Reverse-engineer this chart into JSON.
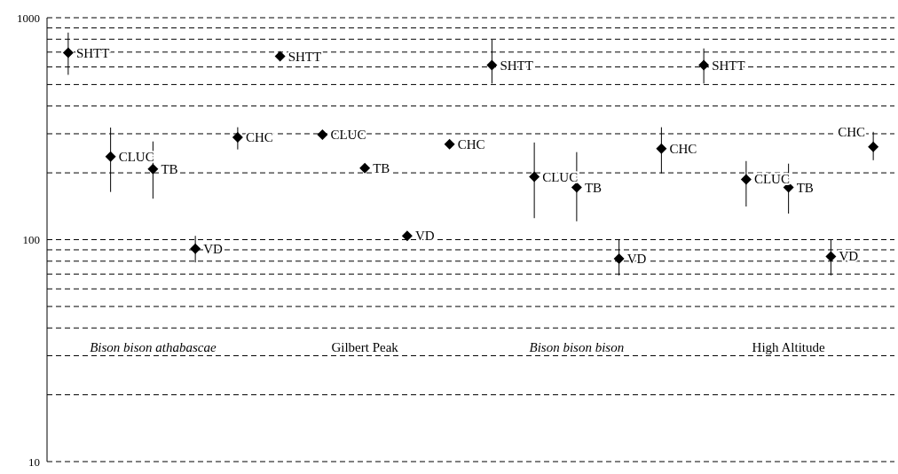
{
  "chart_data": {
    "type": "scatter",
    "categories": [
      null,
      null,
      null,
      null,
      null,
      null,
      null,
      null,
      null,
      null,
      null,
      null,
      null,
      null,
      null,
      null,
      null,
      null,
      null,
      null
    ],
    "series": [
      {
        "color": "#000000",
        "values": [
          695,
          237,
          208,
          91,
          289,
          670,
          297,
          210,
          104,
          269,
          611,
          192,
          172,
          82,
          257,
          611,
          187,
          172,
          84,
          262
        ],
        "errors": [
          [
            553,
            857
          ],
          [
            164,
            320
          ],
          [
            153,
            277
          ],
          [
            79,
            104
          ],
          [
            255,
            321
          ],
          null,
          null,
          null,
          null,
          null,
          [
            505,
            796
          ],
          [
            125,
            274
          ],
          [
            121,
            248
          ],
          [
            69,
            100
          ],
          [
            199,
            321
          ],
          [
            505,
            727
          ],
          [
            141,
            226
          ],
          [
            131,
            220
          ],
          [
            69,
            100
          ],
          [
            228,
            306
          ]
        ],
        "value_labels": [
          "SHTT",
          "CLUC",
          "TB",
          "VD",
          "CHC",
          "SHTT",
          "CLUC",
          "TB",
          "VD",
          "CHC",
          "SHTT",
          "CLUC",
          "TB",
          "VD",
          "CHC",
          "SHTT",
          "CLUC",
          "TB",
          "VD",
          "CHC"
        ]
      }
    ],
    "annotations": [
      "Bison bison athabascae",
      "Gilbert Peak",
      "Bison bison bison",
      "High Altitude"
    ],
    "log": "y",
    "ylim": [
      10,
      1000
    ],
    "yticks": [
      10,
      {
        "value": 20,
        "label": null
      },
      {
        "value": 30,
        "label": null
      },
      {
        "value": 40,
        "label": null
      },
      {
        "value": 50,
        "label": null
      },
      {
        "value": 60,
        "label": null
      },
      {
        "value": 70,
        "label": null
      },
      {
        "value": 80,
        "label": null
      },
      {
        "value": 90,
        "label": null
      },
      100,
      {
        "value": 200,
        "label": null
      },
      {
        "value": 300,
        "label": null
      },
      {
        "value": 400,
        "label": null
      },
      {
        "value": 500,
        "label": null
      },
      {
        "value": 600,
        "label": null
      },
      {
        "value": 700,
        "label": null
      },
      {
        "value": 800,
        "label": null
      },
      {
        "value": 900,
        "label": null
      },
      1000
    ],
    "grid": "y",
    "legend": false,
    "marker": "diamond"
  }
}
